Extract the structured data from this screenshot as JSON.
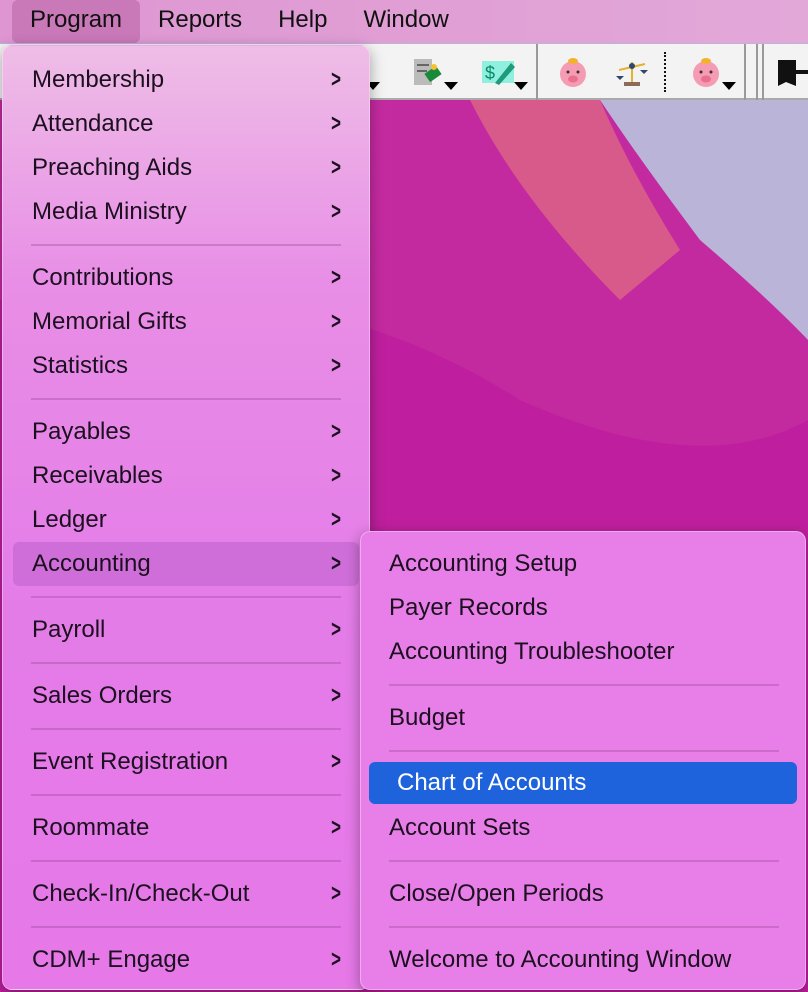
{
  "menubar": {
    "items": [
      "Program",
      "Reports",
      "Help",
      "Window"
    ],
    "active": "Program"
  },
  "toolbar": {
    "icons": [
      "ledger-icon",
      "payment-document-icon",
      "dollar-edit-icon",
      "piggy-bank-icon",
      "balance-scale-icon",
      "piggy-bank-dropdown-icon",
      "exit-door-icon"
    ]
  },
  "program_menu": {
    "items": [
      {
        "label": "Membership",
        "submenu": true
      },
      {
        "label": "Attendance",
        "submenu": true
      },
      {
        "label": "Preaching Aids",
        "submenu": true
      },
      {
        "label": "Media Ministry",
        "submenu": true
      },
      {
        "label": "Contributions",
        "submenu": true
      },
      {
        "label": "Memorial Gifts",
        "submenu": true
      },
      {
        "label": "Statistics",
        "submenu": true
      },
      {
        "label": "Payables",
        "submenu": true
      },
      {
        "label": "Receivables",
        "submenu": true
      },
      {
        "label": "Ledger",
        "submenu": true
      },
      {
        "label": "Accounting",
        "submenu": true,
        "highlighted": true
      },
      {
        "label": "Payroll",
        "submenu": true
      },
      {
        "label": "Sales Orders",
        "submenu": true
      },
      {
        "label": "Event Registration",
        "submenu": true
      },
      {
        "label": "Roommate",
        "submenu": true
      },
      {
        "label": "Check-In/Check-Out",
        "submenu": true
      },
      {
        "label": "CDM+ Engage",
        "submenu": true
      }
    ]
  },
  "accounting_submenu": {
    "items": [
      "Accounting Setup",
      "Payer Records",
      "Accounting Troubleshooter",
      "Budget",
      "Chart of Accounts",
      "Account Sets",
      "Close/Open Periods",
      "Welcome to Accounting Window"
    ],
    "selected": "Chart of Accounts"
  },
  "colors": {
    "selection": "#1f63dc",
    "menu": "#e87fe8",
    "menubar": "#e0a0d6"
  }
}
